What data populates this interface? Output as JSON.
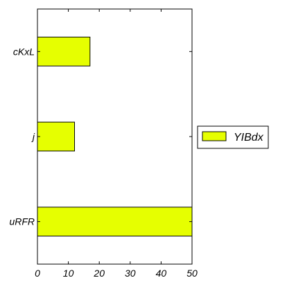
{
  "chart_data": {
    "type": "bar",
    "orientation": "horizontal",
    "categories": [
      "uRFR",
      "j",
      "cKxL"
    ],
    "series": [
      {
        "name": "YIBdx",
        "values": [
          50,
          12,
          17
        ],
        "color": "#e6ff00"
      }
    ],
    "xlim": [
      0,
      50
    ],
    "xticks": [
      "0",
      "10",
      "20",
      "30",
      "40",
      "50"
    ],
    "grid": false,
    "legend": {
      "placement": "right",
      "entries": [
        "YIBdx"
      ]
    }
  }
}
